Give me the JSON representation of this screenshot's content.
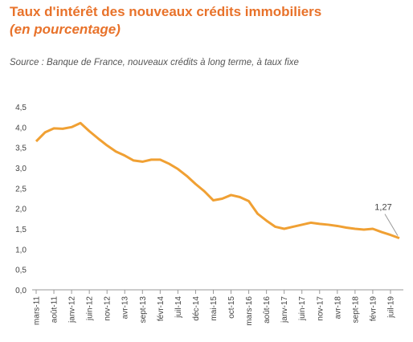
{
  "chart_data": {
    "type": "line",
    "title": "Taux d'intérêt des nouveaux crédits immobiliers",
    "subtitle": "(en pourcentage)",
    "source": "Source : Banque de France, nouveaux crédits à long terme, à taux fixe",
    "categories": [
      "mars-11",
      null,
      "août-11",
      null,
      "janv-12",
      null,
      "juin-12",
      null,
      "nov-12",
      null,
      "avr-13",
      null,
      "sept-13",
      null,
      "févr-14",
      null,
      "juil-14",
      null,
      "déc-14",
      null,
      "mai-15",
      null,
      "oct-15",
      null,
      "mars-16",
      null,
      "août-16",
      null,
      "janv-17",
      null,
      "juin-17",
      null,
      "nov-17",
      null,
      "avr-18",
      null,
      "sept-18",
      null,
      "févr-19",
      null,
      "juil-19",
      null
    ],
    "series": [
      {
        "name": "Taux",
        "color": "#f0a033",
        "values": [
          3.65,
          3.87,
          3.97,
          3.96,
          4.0,
          4.1,
          3.9,
          3.72,
          3.55,
          3.4,
          3.3,
          3.18,
          3.15,
          3.2,
          3.2,
          3.1,
          2.97,
          2.8,
          2.6,
          2.42,
          2.2,
          2.24,
          2.33,
          2.28,
          2.18,
          1.87,
          1.7,
          1.55,
          1.5,
          1.55,
          1.6,
          1.65,
          1.62,
          1.6,
          1.57,
          1.53,
          1.5,
          1.48,
          1.5,
          1.42,
          1.35,
          1.27
        ],
        "value_labels": [
          null,
          null,
          null,
          null,
          null,
          null,
          null,
          null,
          null,
          null,
          null,
          null,
          null,
          null,
          null,
          null,
          null,
          null,
          null,
          null,
          null,
          null,
          null,
          null,
          null,
          null,
          null,
          null,
          null,
          null,
          null,
          null,
          null,
          null,
          null,
          null,
          null,
          null,
          null,
          null,
          null,
          "1,27"
        ]
      }
    ],
    "ylim": [
      0,
      4.5
    ],
    "yticks": [
      {
        "value": 0,
        "label": "0,0"
      },
      {
        "value": 0.5,
        "label": "0,5"
      },
      {
        "value": 1,
        "label": "1,0"
      },
      {
        "value": 1.5,
        "label": "1,5"
      },
      {
        "value": 2,
        "label": "2,0"
      },
      {
        "value": 2.5,
        "label": "2,5"
      },
      {
        "value": 3,
        "label": "3,0"
      },
      {
        "value": 3.5,
        "label": "3,5"
      },
      {
        "value": 4,
        "label": "4,0"
      },
      {
        "value": 4.5,
        "label": "4,5"
      }
    ],
    "grid": false
  }
}
